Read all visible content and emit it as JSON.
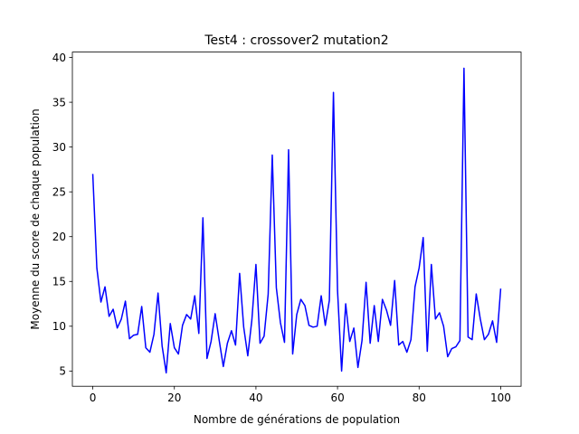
{
  "chart_data": {
    "type": "line",
    "title": "Test4 : crossover2 mutation2",
    "xlabel": "Nombre de générations de population",
    "ylabel": "Moyenne du score de chaque population",
    "xlim": [
      -5,
      105
    ],
    "ylim": [
      3.3,
      40.6
    ],
    "xticks": [
      0,
      20,
      40,
      60,
      80,
      100
    ],
    "yticks": [
      5,
      10,
      15,
      20,
      25,
      30,
      35,
      40
    ],
    "grid": false,
    "line_color": "#0000ff",
    "series": [
      {
        "x": [
          0,
          1,
          2,
          3,
          4,
          5,
          6,
          7,
          8,
          9,
          10,
          11,
          12,
          13,
          14,
          15,
          16,
          17,
          18,
          19,
          20,
          21,
          22,
          23,
          24,
          25,
          26,
          27,
          28,
          29,
          30,
          31,
          32,
          33,
          34,
          35,
          36,
          37,
          38,
          39,
          40,
          41,
          42,
          43,
          44,
          45,
          46,
          47,
          48,
          49,
          50,
          51,
          52,
          53,
          54,
          55,
          56,
          57,
          58,
          59,
          60,
          61,
          62,
          63,
          64,
          65,
          66,
          67,
          68,
          69,
          70,
          71,
          72,
          73,
          74,
          75,
          76,
          77,
          78,
          79,
          80,
          81,
          82,
          83,
          84,
          85,
          86,
          87,
          88,
          89,
          90,
          91,
          92,
          93,
          94,
          95,
          96,
          97,
          98,
          99,
          100
        ],
        "values": [
          27.0,
          16.5,
          12.7,
          14.4,
          11.1,
          11.9,
          9.8,
          10.8,
          12.8,
          8.6,
          9.0,
          9.1,
          12.2,
          7.6,
          7.1,
          9.1,
          13.7,
          7.8,
          4.8,
          10.3,
          7.6,
          6.9,
          10.1,
          11.3,
          10.8,
          13.4,
          9.2,
          22.1,
          6.4,
          8.3,
          11.4,
          8.4,
          5.5,
          8.1,
          9.5,
          7.9,
          15.9,
          9.9,
          6.7,
          10.7,
          16.9,
          8.1,
          8.9,
          13.6,
          29.1,
          14.3,
          10.4,
          8.2,
          29.7,
          6.9,
          11.3,
          13.0,
          12.3,
          10.1,
          9.9,
          10.0,
          13.4,
          10.1,
          12.9,
          36.1,
          14.0,
          5.0,
          12.5,
          8.3,
          9.8,
          5.4,
          8.4,
          14.9,
          8.1,
          12.3,
          8.3,
          13.0,
          11.8,
          10.1,
          15.1,
          7.9,
          8.3,
          7.1,
          8.5,
          14.4,
          16.5,
          19.9,
          7.2,
          16.9,
          10.8,
          11.5,
          10.0,
          6.6,
          7.5,
          7.7,
          8.4,
          38.8,
          8.8,
          8.5,
          13.6,
          10.8,
          8.5,
          9.1,
          10.6,
          8.2,
          14.2
        ]
      }
    ]
  }
}
